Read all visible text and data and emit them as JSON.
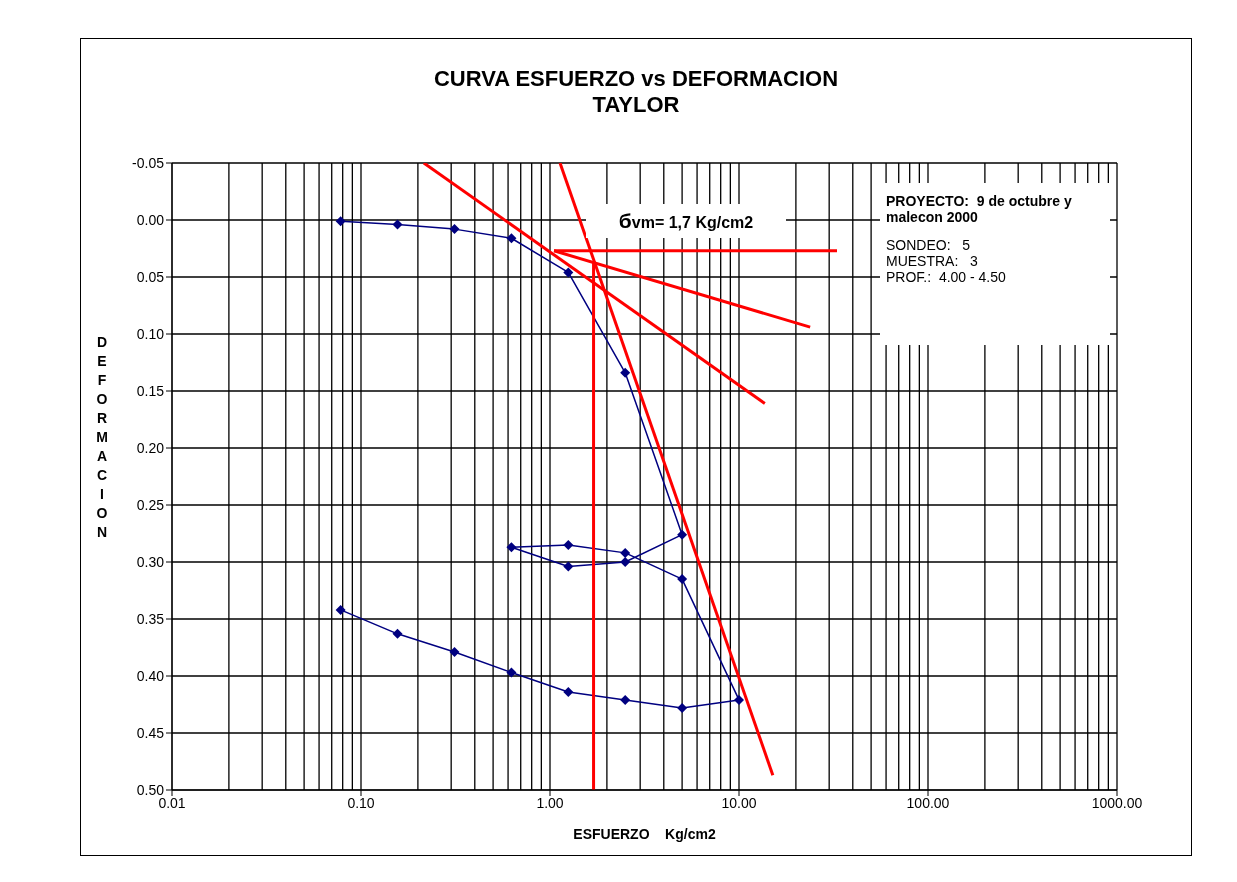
{
  "chart_data": {
    "type": "line",
    "title": "CURVA ESFUERZO vs DEFORMACION",
    "subtitle": "TAYLOR",
    "xlabel": "ESFUERZO    Kg/cm2",
    "ylabel": "DEFORMACION",
    "log": "x",
    "grid": true,
    "line_style": "solid",
    "xlim": [
      0.01,
      1000
    ],
    "xticks": [
      {
        "value": 0.01,
        "label": "0.01"
      },
      {
        "value": 0.1,
        "label": "0.10"
      },
      {
        "value": 1,
        "label": "1.00"
      },
      {
        "value": 10,
        "label": "10.00"
      },
      {
        "value": 100,
        "label": "100.00"
      },
      {
        "value": 1000,
        "label": "1000.00"
      }
    ],
    "ylim": [
      0.5,
      -0.05
    ],
    "yticks": [
      {
        "value": -0.05,
        "label": "-0.05"
      },
      {
        "value": 0,
        "label": "0.00"
      },
      {
        "value": 0.05,
        "label": "0.05"
      },
      {
        "value": 0.1,
        "label": "0.10"
      },
      {
        "value": 0.15,
        "label": "0.15"
      },
      {
        "value": 0.2,
        "label": "0.20"
      },
      {
        "value": 0.25,
        "label": "0.25"
      },
      {
        "value": 0.3,
        "label": "0.30"
      },
      {
        "value": 0.35,
        "label": "0.35"
      },
      {
        "value": 0.4,
        "label": "0.40"
      },
      {
        "value": 0.45,
        "label": "0.45"
      },
      {
        "value": 0.5,
        "label": "0.50"
      }
    ],
    "series": [
      {
        "type": "line",
        "marker": "diamond",
        "color": "#000080",
        "x": [
          0.078,
          0.156,
          0.3125,
          0.625,
          1.25,
          2.5,
          5,
          2.5,
          1.25,
          0.625,
          1.25,
          2.5,
          5,
          10,
          5,
          2.5,
          1.25,
          0.625,
          0.3125,
          0.156,
          0.078
        ],
        "values": [
          0.001,
          0.004,
          0.008,
          0.016,
          0.046,
          0.134,
          0.276,
          0.3,
          0.304,
          0.287,
          0.285,
          0.292,
          0.315,
          0.421,
          0.428,
          0.421,
          0.414,
          0.397,
          0.379,
          0.363,
          0.342
        ]
      },
      {
        "type": "line",
        "marker": "none",
        "color": "#ff0000",
        "x": [
          1.13,
          15.1
        ],
        "values": [
          -0.05,
          0.487
        ]
      },
      {
        "type": "line",
        "marker": "none",
        "color": "#ff0000",
        "x": [
          0.215,
          13.7
        ],
        "values": [
          -0.05,
          0.161
        ]
      },
      {
        "type": "line",
        "marker": "none",
        "color": "#ff0000",
        "x": [
          1.05,
          23.8
        ],
        "values": [
          0.027,
          0.094
        ]
      },
      {
        "type": "line",
        "marker": "none",
        "color": "#ff0000",
        "x": [
          1.05,
          33
        ],
        "values": [
          0.027,
          0.027
        ]
      },
      {
        "type": "line",
        "marker": "none",
        "color": "#ff0000",
        "x": [
          1.7,
          1.7
        ],
        "values": [
          0.036,
          0.5
        ]
      }
    ],
    "annotations": [
      "бvm= 1,7 Kg/cm2",
      "PROYECTO:  9 de octubre y malecon 2000",
      "SONDEO:   5",
      "MUESTRA:   3",
      "PROF.:  4.00 - 4.50"
    ]
  }
}
